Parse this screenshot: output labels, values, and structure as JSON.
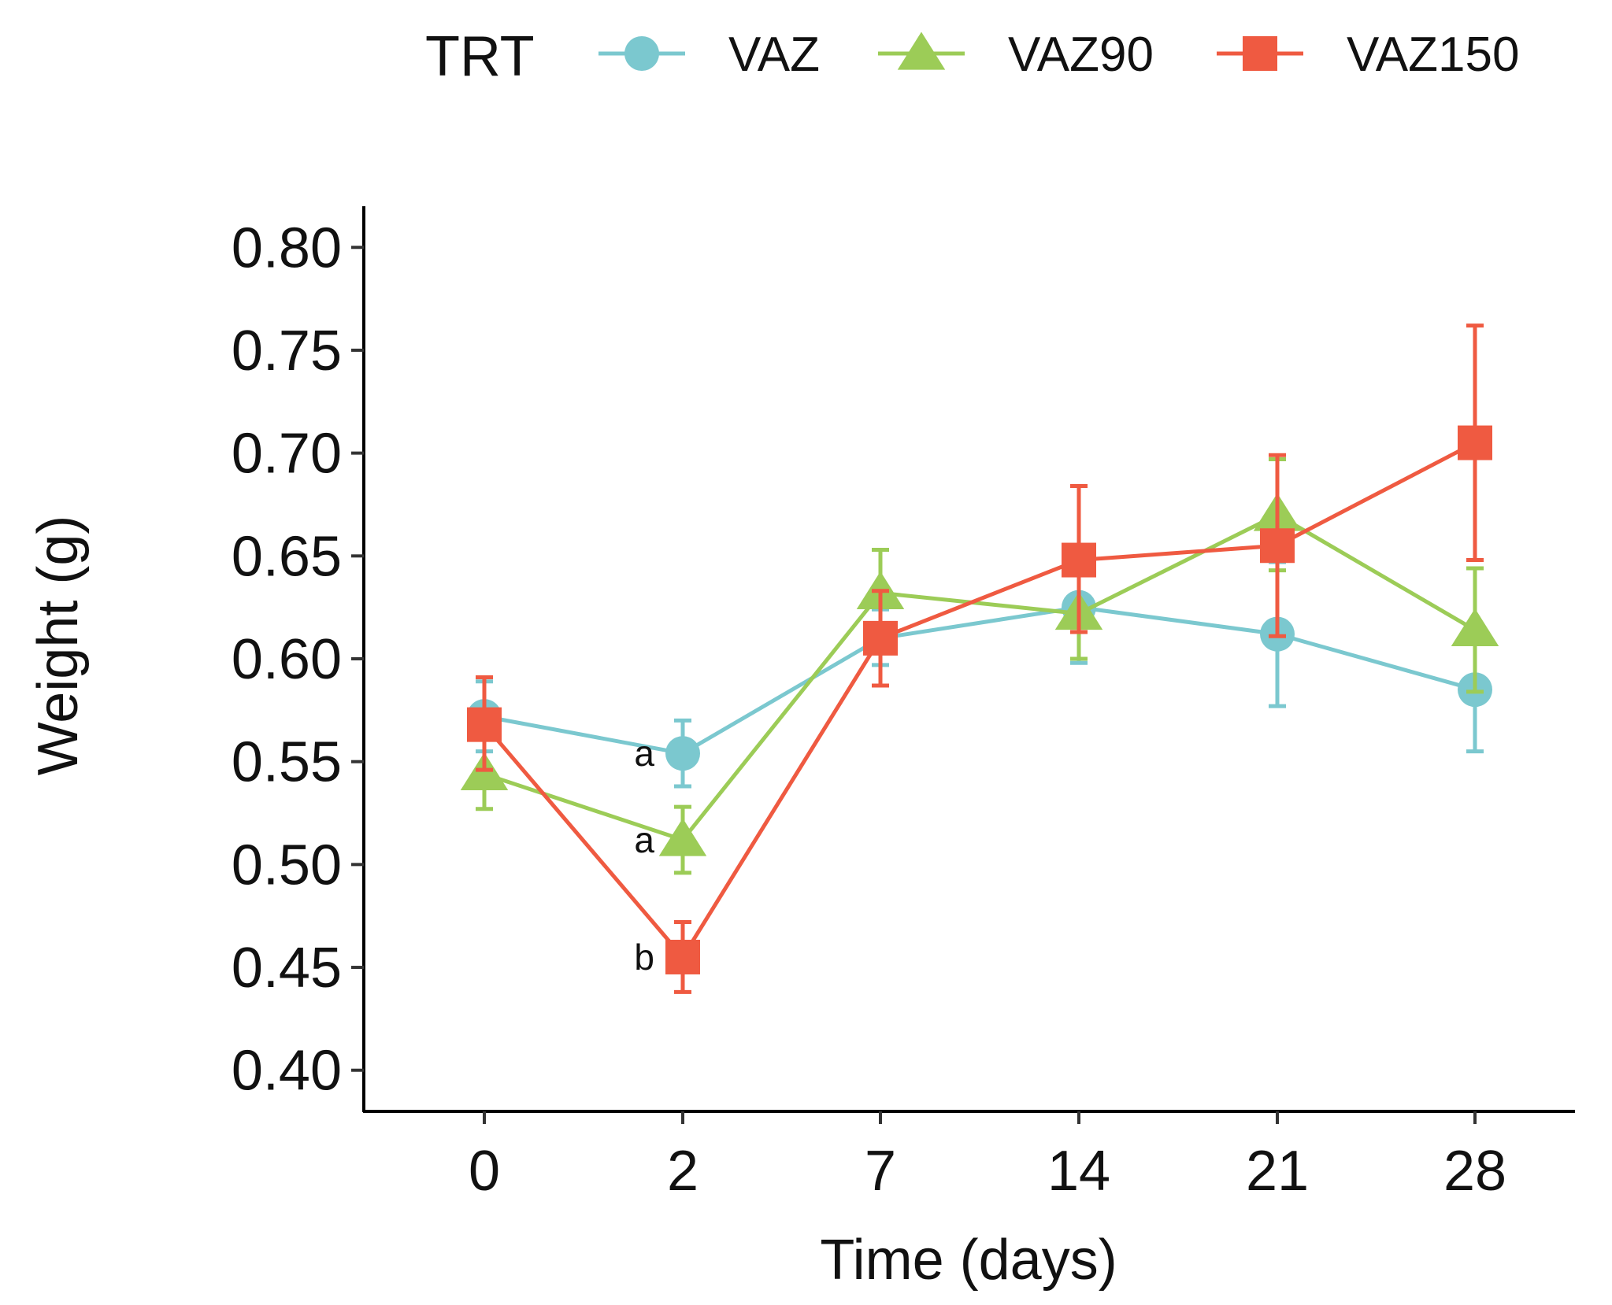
{
  "chart_data": {
    "type": "line",
    "title": "",
    "xlabel": "Time (days)",
    "ylabel": "Weight (g)",
    "categories": [
      "0",
      "2",
      "7",
      "14",
      "21",
      "28"
    ],
    "ylim": [
      0.38,
      0.82
    ],
    "yticks": [
      0.4,
      0.45,
      0.5,
      0.55,
      0.6,
      0.65,
      0.7,
      0.75,
      0.8
    ],
    "ytick_labels": [
      "0.40",
      "0.45",
      "0.50",
      "0.55",
      "0.60",
      "0.65",
      "0.70",
      "0.75",
      "0.80"
    ],
    "grid": false,
    "legend": {
      "title": "TRT",
      "position": "top",
      "entries": [
        "VAZ",
        "VAZ90",
        "VAZ150"
      ]
    },
    "series": [
      {
        "name": "VAZ",
        "color": "#7bc8cf",
        "marker": "circle",
        "values": [
          0.572,
          0.554,
          0.61,
          0.625,
          0.612,
          0.585
        ],
        "err_low": [
          0.555,
          0.538,
          0.597,
          0.598,
          0.577,
          0.555
        ],
        "err_high": [
          0.589,
          0.57,
          0.624,
          0.652,
          0.647,
          0.615
        ]
      },
      {
        "name": "VAZ90",
        "color": "#9ccc57",
        "marker": "triangle",
        "values": [
          0.544,
          0.512,
          0.632,
          0.622,
          0.67,
          0.614
        ],
        "err_low": [
          0.527,
          0.496,
          0.611,
          0.6,
          0.643,
          0.584
        ],
        "err_high": [
          0.561,
          0.528,
          0.653,
          0.644,
          0.697,
          0.644
        ]
      },
      {
        "name": "VAZ150",
        "color": "#ef5a41",
        "marker": "square",
        "values": [
          0.568,
          0.455,
          0.61,
          0.648,
          0.655,
          0.705
        ],
        "err_low": [
          0.546,
          0.438,
          0.587,
          0.613,
          0.611,
          0.648
        ],
        "err_high": [
          0.591,
          0.472,
          0.633,
          0.684,
          0.699,
          0.762
        ]
      }
    ],
    "annotations": [
      {
        "text": "a",
        "category": "2",
        "series": "VAZ"
      },
      {
        "text": "a",
        "category": "2",
        "series": "VAZ90"
      },
      {
        "text": "b",
        "category": "2",
        "series": "VAZ150"
      }
    ]
  }
}
